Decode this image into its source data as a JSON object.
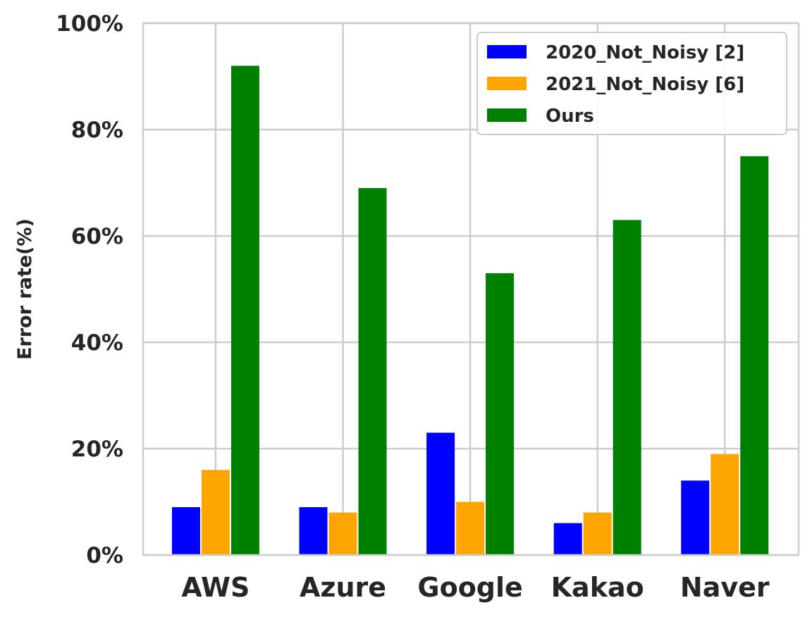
{
  "chart_data": {
    "type": "bar",
    "title": "",
    "xlabel": "",
    "ylabel": "Error rate(%)",
    "categories": [
      "AWS",
      "Azure",
      "Google",
      "Kakao",
      "Naver"
    ],
    "series": [
      {
        "name": "2020_Not_Noisy [2]",
        "color": "#0000ff",
        "values": [
          9,
          9,
          23,
          6,
          14
        ]
      },
      {
        "name": "2021_Not_Noisy [6]",
        "color": "#ffa500",
        "values": [
          16,
          8,
          10,
          8,
          19
        ]
      },
      {
        "name": "Ours",
        "color": "#008000",
        "values": [
          92,
          69,
          53,
          63,
          75
        ]
      }
    ],
    "ylim": [
      0,
      100
    ],
    "yticks": [
      0,
      20,
      40,
      60,
      80,
      100
    ],
    "ytick_labels": [
      "0%",
      "20%",
      "40%",
      "60%",
      "80%",
      "100%"
    ],
    "grid": true,
    "legend_position": "top-right"
  }
}
